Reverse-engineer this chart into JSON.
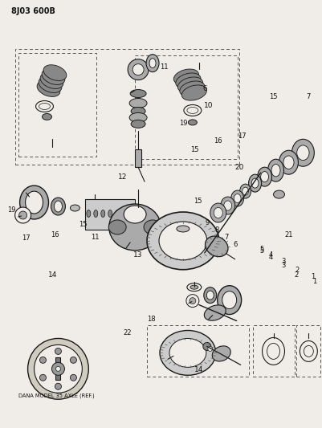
{
  "title": "8J03 600B",
  "bg_color": "#f0ede8",
  "line_color": "#1a1a1a",
  "text_color": "#111111",
  "dana_label": "DANA MODEL 35 AXLE (REF.)",
  "fig_width": 4.01,
  "fig_height": 5.33,
  "dpi": 100
}
